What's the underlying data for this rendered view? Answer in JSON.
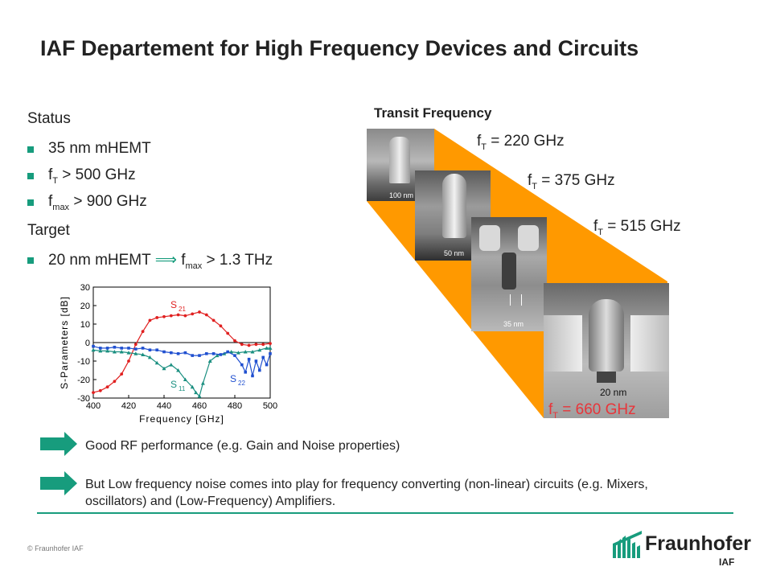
{
  "title": "IAF Departement for High Frequency Devices and Circuits",
  "status": {
    "heading": "Status",
    "bullets": [
      {
        "text": "35 nm mHEMT"
      },
      {
        "pre": "f",
        "sub": "T",
        "post": " > 500 GHz"
      },
      {
        "pre": "f",
        "sub": "max",
        "post": " > 900 GHz"
      }
    ]
  },
  "target": {
    "heading": "Target",
    "bullet": {
      "pre": "20 nm mHEMT ",
      "arrow": "⟹",
      "mid": " f",
      "sub": "max",
      "post": " > 1.3 THz"
    }
  },
  "transit": {
    "heading": "Transit Frequency",
    "labels": [
      {
        "pre": "f",
        "sub": "T",
        "post": " = 220 GHz"
      },
      {
        "pre": "f",
        "sub": "T",
        "post": " = 375 GHz"
      },
      {
        "pre": "f",
        "sub": "T",
        "post": " = 515 GHz"
      },
      {
        "pre": "f",
        "sub": "T",
        "post": " = 660 GHz"
      }
    ],
    "scale_labels": [
      "100 nm",
      "50 nm",
      "35 nm",
      "20 nm"
    ],
    "colors": {
      "fan": "#ff9900",
      "highlight": "#e8353a"
    }
  },
  "chart_data": {
    "type": "line",
    "xlabel": "Frequency [GHz]",
    "ylabel": "S-Parameters [dB]",
    "xlim": [
      400,
      500
    ],
    "ylim": [
      -30,
      30
    ],
    "xticks": [
      400,
      420,
      440,
      460,
      480,
      500
    ],
    "yticks": [
      30,
      20,
      10,
      0,
      -10,
      -20,
      -30
    ],
    "series": [
      {
        "name": "S21",
        "color": "#e02020",
        "x": [
          400,
          404,
          408,
          412,
          416,
          420,
          424,
          428,
          432,
          436,
          440,
          444,
          448,
          452,
          456,
          460,
          464,
          468,
          472,
          476,
          480,
          484,
          488,
          492,
          496,
          500
        ],
        "y": [
          -27,
          -26,
          -24,
          -21,
          -17,
          -10,
          -1,
          6,
          12,
          13.5,
          14,
          14.5,
          15,
          14.5,
          15.5,
          16.5,
          15,
          12,
          9,
          5,
          1,
          -1,
          -1.5,
          -1,
          -1,
          -0.5
        ]
      },
      {
        "name": "S11",
        "color": "#1a8f80",
        "x": [
          400,
          404,
          408,
          412,
          416,
          420,
          424,
          428,
          432,
          436,
          440,
          444,
          448,
          452,
          456,
          458,
          460,
          462,
          466,
          470,
          474,
          478,
          482,
          486,
          490,
          494,
          498,
          500
        ],
        "y": [
          -4,
          -4.5,
          -4.5,
          -5,
          -5,
          -5.5,
          -6,
          -6.5,
          -8,
          -11,
          -14,
          -12,
          -15,
          -20,
          -24,
          -27,
          -29,
          -22,
          -10,
          -7,
          -6,
          -5,
          -5.5,
          -5,
          -5,
          -4,
          -3,
          -3
        ]
      },
      {
        "name": "S22",
        "color": "#2050d0",
        "x": [
          400,
          404,
          408,
          412,
          416,
          420,
          424,
          428,
          432,
          436,
          440,
          444,
          448,
          452,
          456,
          460,
          464,
          468,
          472,
          476,
          480,
          484,
          486,
          488,
          490,
          492,
          494,
          496,
          498,
          500
        ],
        "y": [
          -2,
          -3,
          -3,
          -2.5,
          -3,
          -3,
          -3.5,
          -3,
          -4,
          -4,
          -5,
          -5.5,
          -6,
          -5.5,
          -7,
          -7,
          -6,
          -6,
          -6.5,
          -5,
          -7,
          -12,
          -16,
          -9,
          -18,
          -10,
          -15,
          -8,
          -12,
          -6
        ]
      }
    ],
    "series_labels": [
      {
        "base": "S",
        "sub": "21"
      },
      {
        "base": "S",
        "sub": "11"
      },
      {
        "base": "S",
        "sub": "22"
      }
    ]
  },
  "notes": [
    "Good RF performance (e.g. Gain and Noise properties)",
    "But Low frequency noise comes into play for frequency converting (non-linear) circuits (e.g. Mixers, oscillators) and (Low-Frequency) Amplifiers."
  ],
  "footer": {
    "copyright": "© Fraunhofer IAF",
    "logo_name": "Fraunhofer",
    "logo_sub": "IAF",
    "brand_color": "#179c7d"
  }
}
